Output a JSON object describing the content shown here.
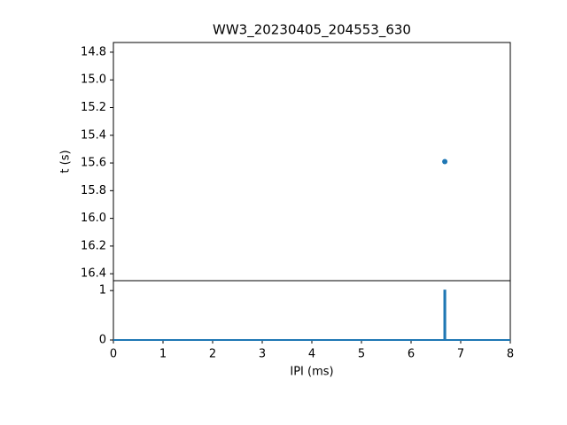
{
  "chart_data": [
    {
      "type": "scatter",
      "title": "WW3_20230405_204553_630",
      "ylabel": "t (s)",
      "x": [
        6.68
      ],
      "values": [
        15.59
      ],
      "color": "#1f77b4",
      "xlim": [
        0,
        8
      ],
      "ylim": [
        16.45,
        14.73
      ],
      "yticks": [
        {
          "value": 14.8,
          "label": "14.8"
        },
        {
          "value": 15,
          "label": "15.0"
        },
        {
          "value": 15.2,
          "label": "15.2"
        },
        {
          "value": 15.4,
          "label": "15.4"
        },
        {
          "value": 15.6,
          "label": "15.6"
        },
        {
          "value": 15.8,
          "label": "15.8"
        },
        {
          "value": 16,
          "label": "16.0"
        },
        {
          "value": 16.2,
          "label": "16.2"
        },
        {
          "value": 16.4,
          "label": "16.4"
        }
      ]
    },
    {
      "type": "line",
      "xlabel": "IPI (ms)",
      "x": [
        0,
        6.67,
        6.67,
        6.69,
        6.69,
        8
      ],
      "values": [
        0,
        0,
        1,
        1,
        0,
        0
      ],
      "color": "#1f77b4",
      "xlim": [
        0,
        8
      ],
      "ylim": [
        0,
        1.2
      ],
      "xticks": [
        0,
        1,
        2,
        3,
        4,
        5,
        6,
        7,
        8
      ],
      "yticks": [
        0,
        1
      ]
    }
  ]
}
